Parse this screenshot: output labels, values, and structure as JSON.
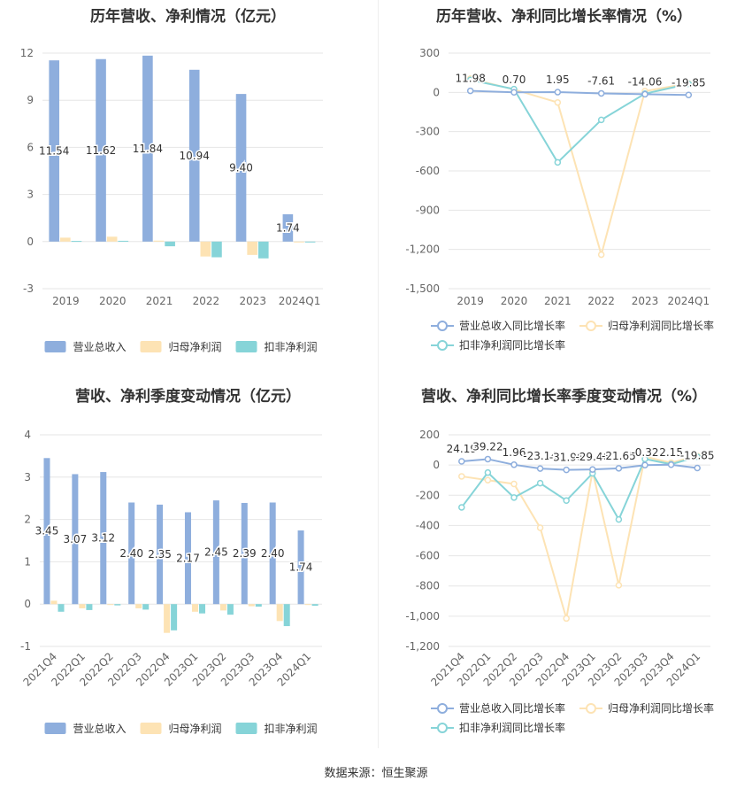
{
  "colors": {
    "revenue": "#8eaedd",
    "net_profit": "#fde3b4",
    "deducted_profit": "#86d4d8",
    "grid": "#e6e6e6",
    "axis_text": "#666666"
  },
  "footer": "数据来源：恒生聚源",
  "chart_data": [
    {
      "id": "annual-amount",
      "type": "bar",
      "title": "历年营收、净利情况（亿元）",
      "categories": [
        "2019",
        "2020",
        "2021",
        "2022",
        "2023",
        "2024Q1"
      ],
      "series": [
        {
          "name": "营业总收入",
          "values": [
            11.54,
            11.62,
            11.84,
            10.94,
            9.4,
            1.74
          ],
          "labels": [
            "11.54",
            "11.62",
            "11.84",
            "10.94",
            "9.40",
            "1.74"
          ]
        },
        {
          "name": "归母净利润",
          "values": [
            0.25,
            0.31,
            0.06,
            -0.95,
            -0.85,
            -0.02
          ]
        },
        {
          "name": "扣非净利润",
          "values": [
            0.04,
            0.05,
            -0.3,
            -1.0,
            -1.07,
            -0.03
          ]
        }
      ],
      "yticks": [
        "12",
        "9",
        "6",
        "3",
        "0",
        "-3"
      ],
      "ylim": [
        -3,
        12
      ]
    },
    {
      "id": "annual-growth",
      "type": "line",
      "title": "历年营收、净利同比增长率情况（%）",
      "categories": [
        "2019",
        "2020",
        "2021",
        "2022",
        "2023",
        "2024Q1"
      ],
      "series": [
        {
          "name": "营业总收入同比增长率",
          "values": [
            11.98,
            0.7,
            1.95,
            -7.61,
            -14.06,
            -19.85
          ],
          "labels": [
            "11.98",
            "0.70",
            "1.95",
            "-7.61",
            "-14.06",
            "-19.85"
          ]
        },
        {
          "name": "归母净利润同比增长率",
          "values": [
            105,
            22,
            -77,
            -1240,
            10,
            68
          ]
        },
        {
          "name": "扣非净利润同比增长率",
          "values": [
            95,
            25,
            -535,
            -210,
            -10,
            65
          ]
        }
      ],
      "yticks": [
        "300",
        "0",
        "-300",
        "-600",
        "-900",
        "-1,200",
        "-1,500"
      ],
      "ylim": [
        -1500,
        300
      ]
    },
    {
      "id": "quarterly-amount",
      "type": "bar",
      "title": "营收、净利季度变动情况（亿元）",
      "categories": [
        "2021Q4",
        "2022Q1",
        "2022Q2",
        "2022Q3",
        "2022Q4",
        "2023Q1",
        "2023Q2",
        "2023Q3",
        "2023Q4",
        "2024Q1"
      ],
      "series": [
        {
          "name": "营业总收入",
          "values": [
            3.45,
            3.07,
            3.12,
            2.4,
            2.35,
            2.17,
            2.45,
            2.39,
            2.4,
            1.74
          ],
          "labels": [
            "3.45",
            "3.07",
            "3.12",
            "2.40",
            "2.35",
            "2.17",
            "2.45",
            "2.39",
            "2.40",
            "1.74"
          ]
        },
        {
          "name": "归母净利润",
          "values": [
            0.08,
            -0.1,
            -0.02,
            -0.1,
            -0.68,
            -0.18,
            -0.15,
            -0.05,
            -0.4,
            -0.02
          ]
        },
        {
          "name": "扣非净利润",
          "values": [
            -0.18,
            -0.14,
            -0.03,
            -0.13,
            -0.62,
            -0.22,
            -0.25,
            -0.06,
            -0.52,
            -0.04
          ]
        }
      ],
      "yticks": [
        "4",
        "3",
        "2",
        "1",
        "0",
        "-1"
      ],
      "ylim": [
        -1,
        4
      ]
    },
    {
      "id": "quarterly-growth",
      "type": "line",
      "title": "营收、净利同比增长率季度变动情况（%）",
      "categories": [
        "2021Q4",
        "2022Q1",
        "2022Q2",
        "2022Q3",
        "2022Q4",
        "2023Q1",
        "2023Q2",
        "2023Q3",
        "2023Q4",
        "2024Q1"
      ],
      "series": [
        {
          "name": "营业总收入同比增长率",
          "values": [
            24.19,
            39.22,
            1.96,
            -23.14,
            -31.96,
            -29.46,
            -21.65,
            -0.32,
            2.15,
            -19.85
          ],
          "labels": [
            "24.19",
            "39.22",
            "1.96",
            "-23.14",
            "-31.96",
            "-29.46",
            "-21.65",
            "-0.32",
            "2.15",
            "-19.85"
          ]
        },
        {
          "name": "归母净利润同比增长率",
          "values": [
            -75,
            -100,
            -125,
            -415,
            -1015,
            -40,
            -795,
            55,
            15,
            60
          ]
        },
        {
          "name": "扣非净利润同比增长率",
          "values": [
            -280,
            -50,
            -215,
            -120,
            -235,
            -55,
            -360,
            40,
            5,
            55
          ]
        }
      ],
      "yticks": [
        "200",
        "0",
        "-200",
        "-400",
        "-600",
        "-800",
        "-1,000",
        "-1,200"
      ],
      "ylim": [
        -1200,
        200
      ]
    }
  ]
}
